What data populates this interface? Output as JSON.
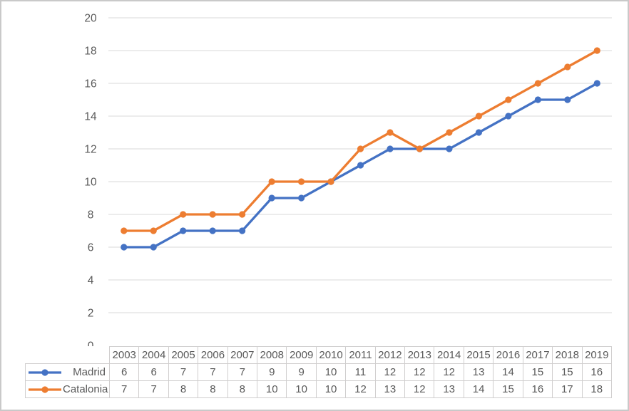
{
  "chart_data": {
    "type": "line",
    "title": "",
    "xlabel": "",
    "ylabel": "",
    "categories": [
      "2003",
      "2004",
      "2005",
      "2006",
      "2007",
      "2008",
      "2009",
      "2010",
      "2011",
      "2012",
      "2013",
      "2014",
      "2015",
      "2016",
      "2017",
      "2018",
      "2019"
    ],
    "series": [
      {
        "name": "Madrid",
        "color": "#4472C4",
        "values": [
          6,
          6,
          7,
          7,
          7,
          9,
          9,
          10,
          11,
          12,
          12,
          12,
          13,
          14,
          15,
          15,
          16
        ]
      },
      {
        "name": "Catalonia",
        "color": "#ED7D31",
        "values": [
          7,
          7,
          8,
          8,
          8,
          10,
          10,
          10,
          12,
          13,
          12,
          13,
          14,
          15,
          16,
          17,
          18
        ]
      }
    ],
    "ylim": [
      0,
      20
    ],
    "ytick_step": 2,
    "grid": true,
    "legend_position": "data-table-left"
  },
  "colors": {
    "gridline": "#D9D9D9",
    "axis_text": "#595959",
    "table_text": "#595959",
    "table_border": "#D0CECE",
    "frame_border": "#C9C9C9",
    "background": "#FFFFFF"
  }
}
